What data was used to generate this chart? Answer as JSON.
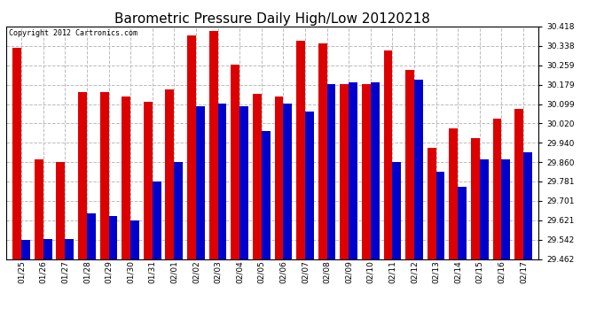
{
  "title": "Barometric Pressure Daily High/Low 20120218",
  "copyright": "Copyright 2012 Cartronics.com",
  "dates": [
    "01/25",
    "01/26",
    "01/27",
    "01/28",
    "01/29",
    "01/30",
    "01/31",
    "02/01",
    "02/02",
    "02/03",
    "02/04",
    "02/05",
    "02/06",
    "02/07",
    "02/08",
    "02/09",
    "02/10",
    "02/11",
    "02/12",
    "02/13",
    "02/14",
    "02/15",
    "02/16",
    "02/17"
  ],
  "highs": [
    30.33,
    29.87,
    29.86,
    30.15,
    30.15,
    30.13,
    30.11,
    30.16,
    30.38,
    30.4,
    30.26,
    30.14,
    30.13,
    30.36,
    30.35,
    30.18,
    30.18,
    30.32,
    30.24,
    29.92,
    30.0,
    29.96,
    30.04,
    30.08
  ],
  "lows": [
    29.54,
    29.545,
    29.545,
    29.65,
    29.64,
    29.62,
    29.78,
    29.86,
    30.09,
    30.1,
    30.09,
    29.99,
    30.1,
    30.07,
    30.18,
    30.19,
    30.19,
    29.86,
    30.2,
    29.82,
    29.76,
    29.87,
    29.87,
    29.9
  ],
  "ymin": 29.462,
  "ymax": 30.418,
  "yticks": [
    29.462,
    29.542,
    29.621,
    29.701,
    29.781,
    29.86,
    29.94,
    30.02,
    30.099,
    30.179,
    30.259,
    30.338,
    30.418
  ],
  "bar_width": 0.4,
  "high_color": "#dd0000",
  "low_color": "#0000cc",
  "bg_color": "#ffffff",
  "grid_color": "#bbbbbb",
  "title_fontsize": 11,
  "tick_fontsize": 6.5,
  "copyright_fontsize": 6
}
